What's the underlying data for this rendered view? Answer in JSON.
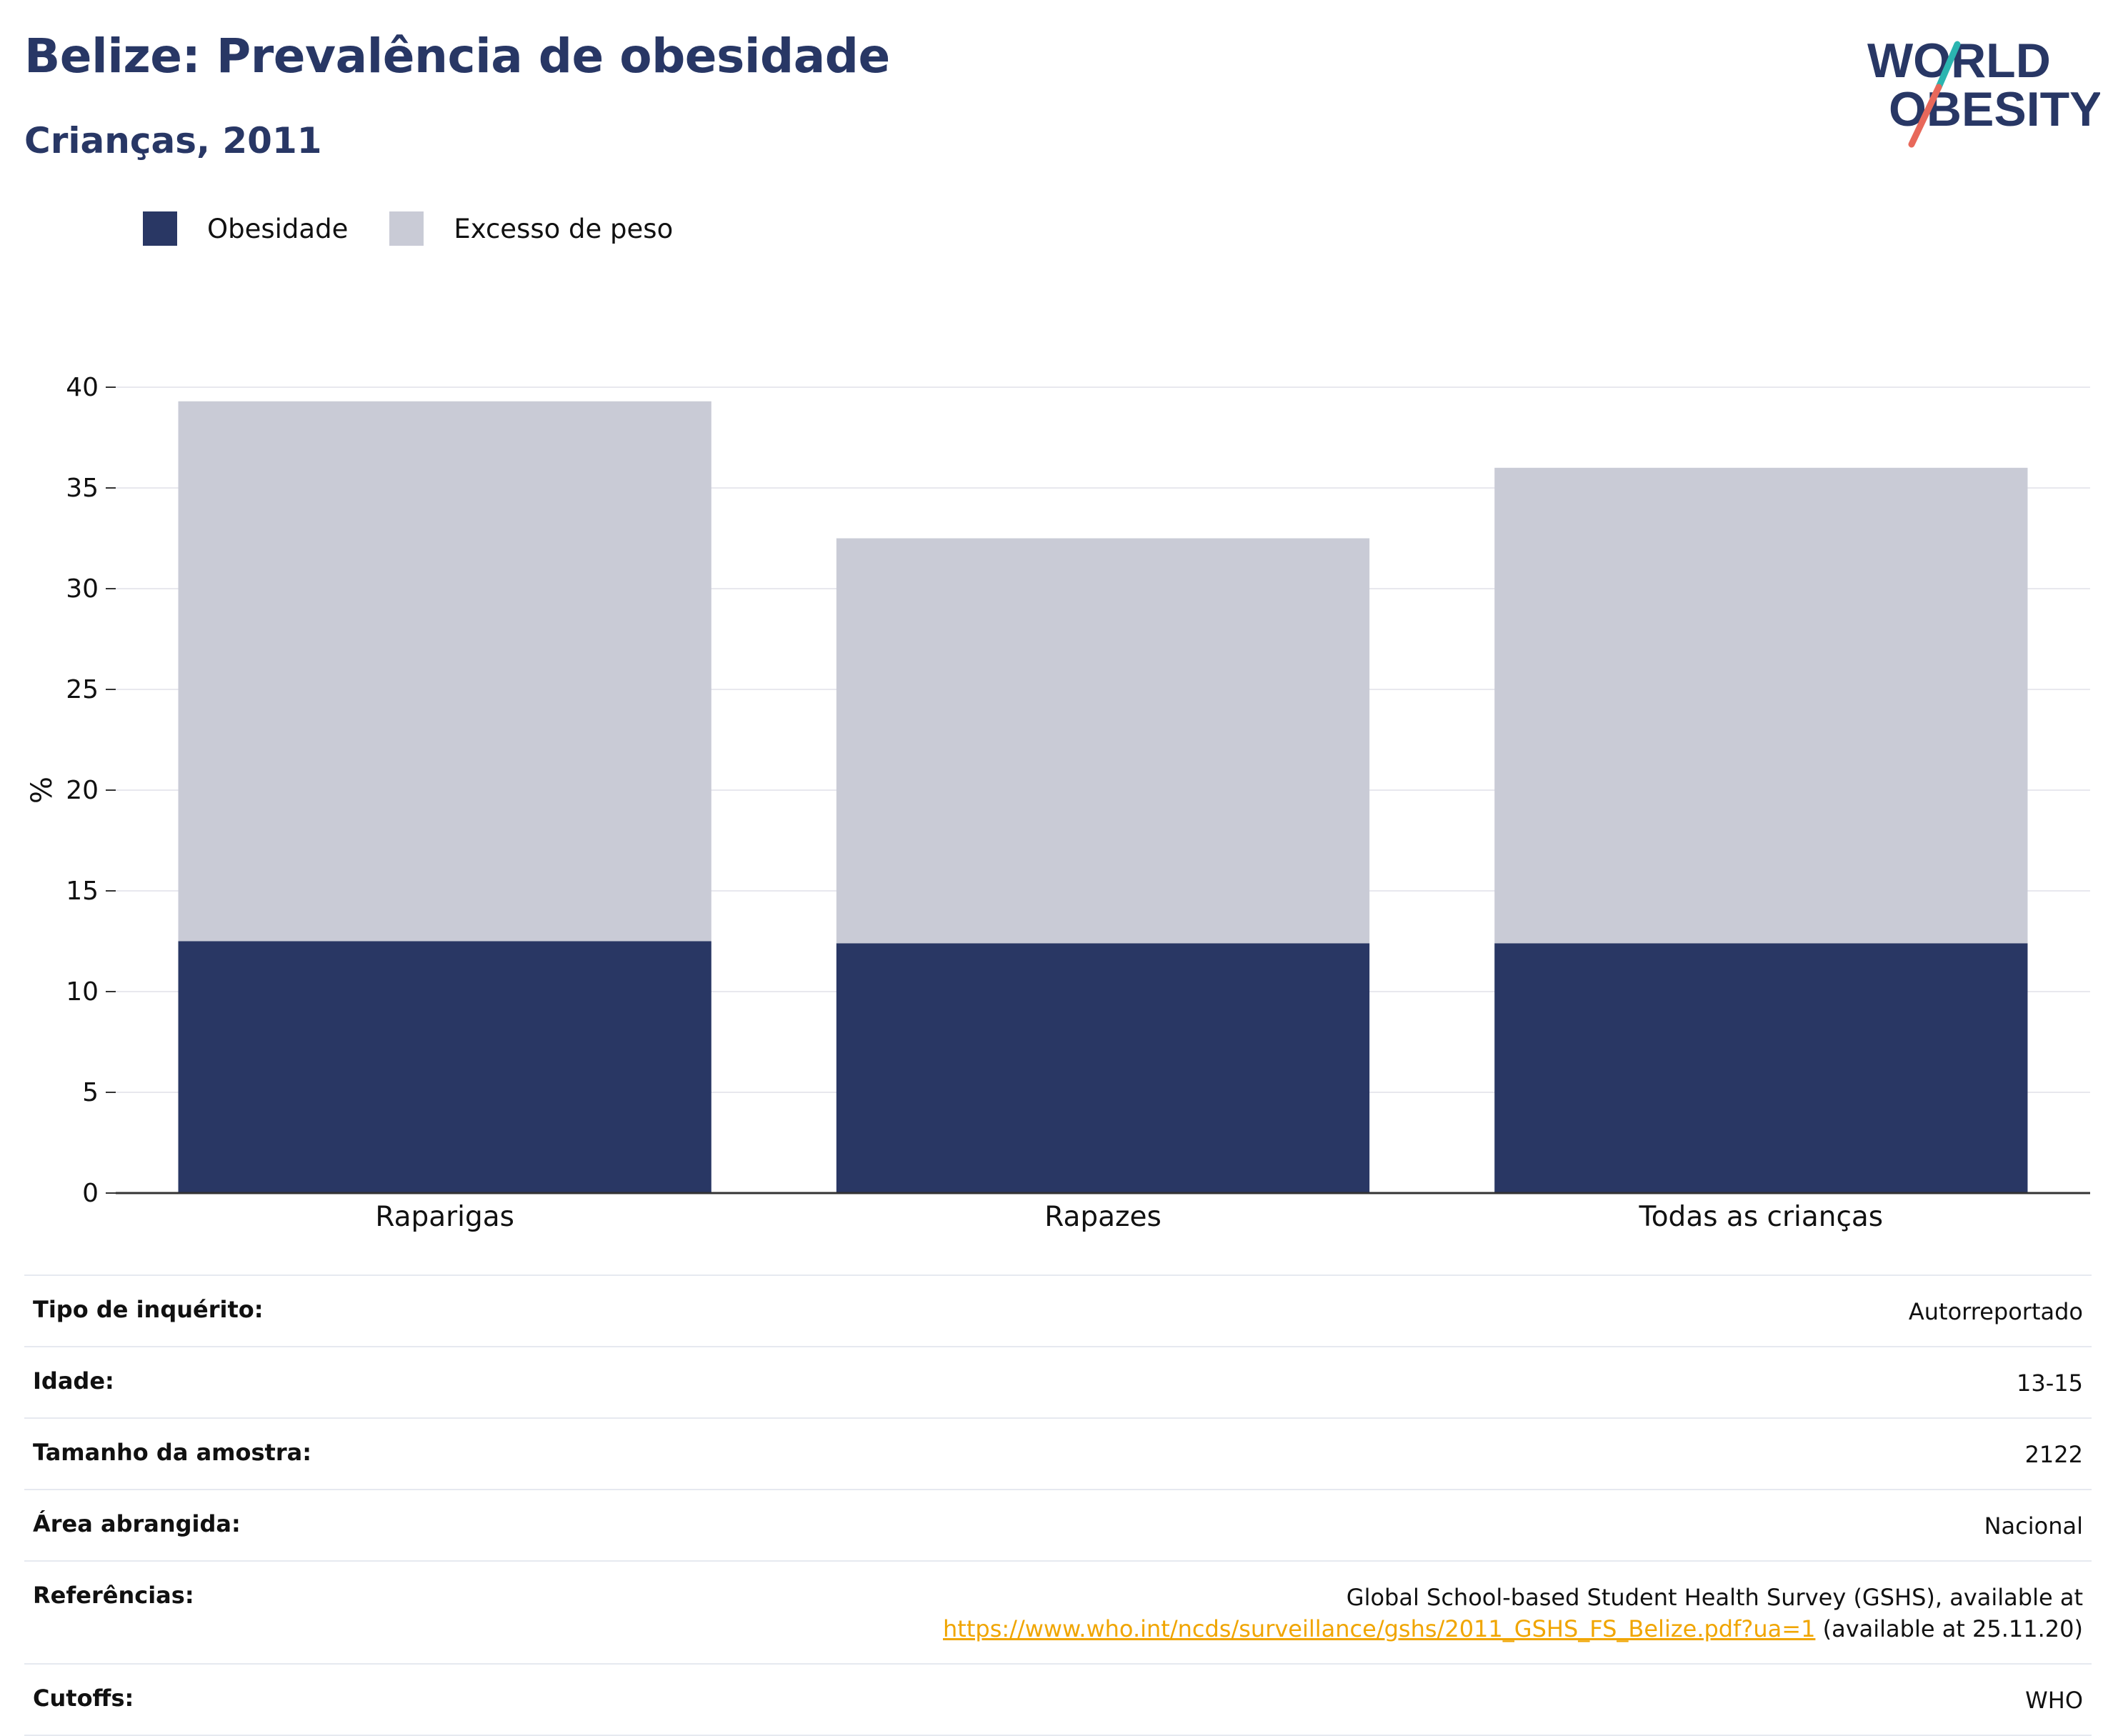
{
  "header": {
    "title": "Belize: Prevalência de obesidade",
    "subtitle": "Crianças, 2011"
  },
  "logo": {
    "line1": "WORLD",
    "line2": "OBESITY",
    "accent_colors": [
      "#2bb5b0",
      "#e8685a"
    ],
    "text_color": "#283765"
  },
  "legend": [
    {
      "label": "Obesidade",
      "color": "#293764"
    },
    {
      "label": "Excesso de peso",
      "color": "#c9cbd6"
    }
  ],
  "chart_data": {
    "type": "bar",
    "stacked": true,
    "categories": [
      "Raparigas",
      "Rapazes",
      "Todas as crianças"
    ],
    "series": [
      {
        "name": "Obesidade",
        "color": "#293764",
        "values": [
          12.5,
          12.4,
          12.4
        ]
      },
      {
        "name": "Excesso de peso",
        "color": "#c9cbd6",
        "values": [
          26.8,
          20.1,
          23.6
        ]
      }
    ],
    "ylabel": "%",
    "xlabel": "",
    "ylim": [
      0,
      40
    ],
    "yticks": [
      0,
      5,
      10,
      15,
      20,
      25,
      30,
      35,
      40
    ],
    "grid": true,
    "legend_position": "top-left"
  },
  "metadata": {
    "rows": [
      {
        "label": "Tipo de inquérito:",
        "value": "Autorreportado"
      },
      {
        "label": "Idade:",
        "value": "13-15"
      },
      {
        "label": "Tamanho da amostra:",
        "value": "2122"
      },
      {
        "label": "Área abrangida:",
        "value": "Nacional"
      },
      {
        "label": "Cutoffs:",
        "value": "WHO"
      }
    ],
    "references": {
      "label": "Referências:",
      "text1": "Global School-based Student Health Survey (GSHS), available at",
      "link": "https://www.who.int/ncds/surveillance/gshs/2011_GSHS_FS_Belize.pdf?ua=1",
      "text2": " (available at 25.11.20)"
    }
  }
}
